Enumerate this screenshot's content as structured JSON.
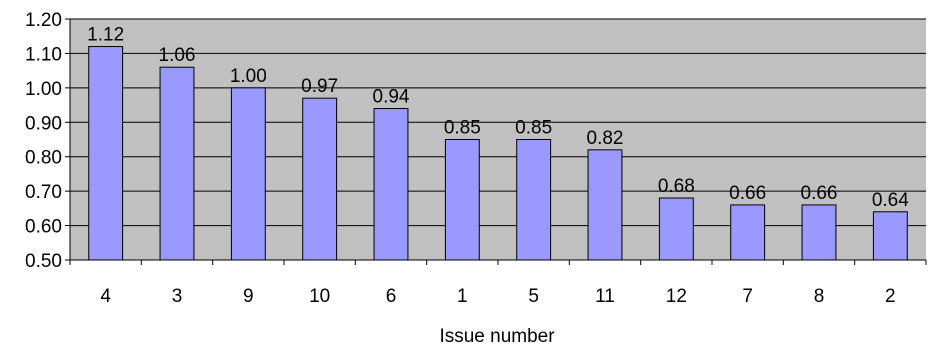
{
  "chart_data": {
    "type": "bar",
    "categories": [
      "4",
      "3",
      "9",
      "10",
      "6",
      "1",
      "5",
      "11",
      "12",
      "7",
      "8",
      "2"
    ],
    "values": [
      1.12,
      1.06,
      1.0,
      0.97,
      0.94,
      0.85,
      0.85,
      0.82,
      0.68,
      0.66,
      0.66,
      0.64
    ],
    "data_labels": [
      "1.12",
      "1.06",
      "1.00",
      "0.97",
      "0.94",
      "0.85",
      "0.85",
      "0.82",
      "0.68",
      "0.66",
      "0.66",
      "0.64"
    ],
    "title": "",
    "xlabel": "Issue number",
    "ylabel": "",
    "ylim": [
      0.5,
      1.2
    ],
    "yticks": [
      "0.50",
      "0.60",
      "0.70",
      "0.80",
      "0.90",
      "1.00",
      "1.10",
      "1.20"
    ],
    "grid": true,
    "legend": "none",
    "colors": {
      "plot_background": "#c0c0c0",
      "bar_fill": "#9999ff",
      "bar_stroke": "#000000",
      "gridline": "#000000"
    }
  }
}
